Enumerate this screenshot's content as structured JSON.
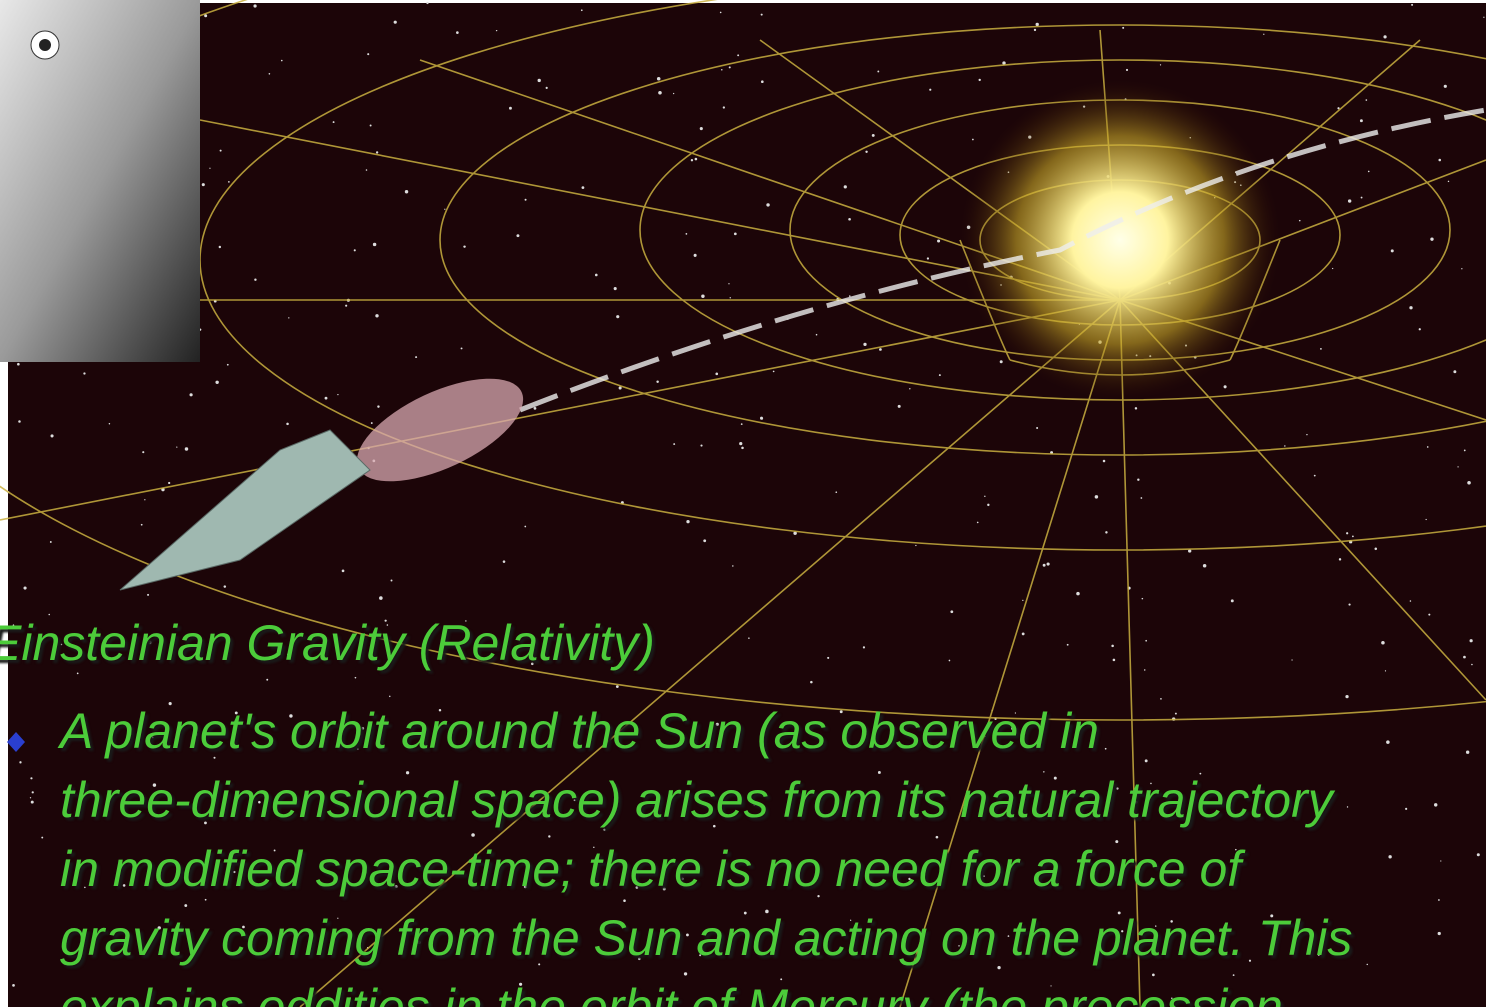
{
  "slide": {
    "heading": "Einsteinian Gravity (Relativity)",
    "bullet_lines": [
      "A planet's orbit around the Sun (as observed in",
      "three-dimensional space) arises from its natural trajectory",
      "in modified space-time; there is no need for a force of",
      "gravity coming from the Sun and acting on the planet. This",
      "explains oddities in the orbit of Mercury (the precession"
    ]
  }
}
